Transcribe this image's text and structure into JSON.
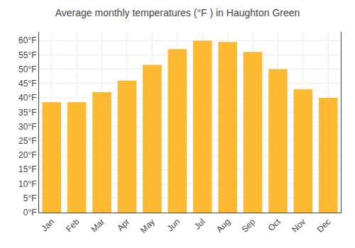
{
  "chart_data": {
    "type": "bar",
    "title": "Average monthly temperatures (°F ) in Haughton Green",
    "categories": [
      "Jan",
      "Feb",
      "Mar",
      "Apr",
      "May",
      "Jun",
      "Jul",
      "Aug",
      "Sep",
      "Oct",
      "Nov",
      "Dec"
    ],
    "values": [
      38.5,
      38.5,
      42.0,
      46.0,
      51.5,
      57.0,
      60.0,
      59.5,
      56.0,
      50.0,
      43.0,
      40.0
    ],
    "color": "#FDB931",
    "ylim": [
      0,
      63
    ],
    "yticks": [
      {
        "value": 0,
        "label": "0°F"
      },
      {
        "value": 5,
        "label": "5°F"
      },
      {
        "value": 10,
        "label": "10°F"
      },
      {
        "value": 15,
        "label": "15°F"
      },
      {
        "value": 20,
        "label": "20°F"
      },
      {
        "value": 25,
        "label": "25°F"
      },
      {
        "value": 30,
        "label": "30°F"
      },
      {
        "value": 35,
        "label": "35°F"
      },
      {
        "value": 40,
        "label": "40°F"
      },
      {
        "value": 45,
        "label": "45°F"
      },
      {
        "value": 50,
        "label": "50°F"
      },
      {
        "value": 55,
        "label": "55°F"
      },
      {
        "value": 60,
        "label": "60°F"
      }
    ],
    "grid": true
  }
}
